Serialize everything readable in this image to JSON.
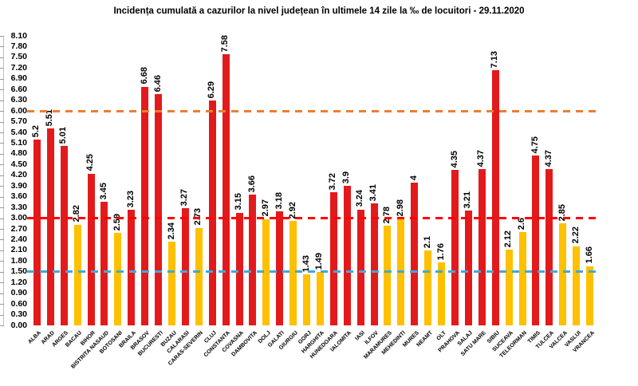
{
  "title": "Incidența cumulată a cazurilor la nivel județean în ultimele 14 zile la ‰ de locuitori - 29.11.2020",
  "chart_data": {
    "type": "bar",
    "title": "Incidența cumulată a cazurilor la nivel județean în ultimele 14 zile la ‰ de locuitori - 29.11.2020",
    "xlabel": "",
    "ylabel": "",
    "ylim": [
      0,
      8.1
    ],
    "ytick_step": 0.3,
    "ytick_labels": [
      "8.10",
      "7.80",
      "7.50",
      "7.20",
      "6.90",
      "6.60",
      "6.30",
      "6.00",
      "5.70",
      "5.40",
      "5.10",
      "4.80",
      "4.50",
      "4.20",
      "3.90",
      "3.60",
      "3.30",
      "3.00",
      "2.70",
      "2.40",
      "2.10",
      "1.80",
      "1.50",
      "1.20",
      "0.90",
      "0.60",
      "0.30",
      "0.00"
    ],
    "grid": false,
    "legend": false,
    "categories": [
      "ALBA",
      "ARAD",
      "ARGES",
      "BACAU",
      "BIHOR",
      "BISTRITA NASAUD",
      "BOTOSANI",
      "BRAILA",
      "BRASOV",
      "BUCURESTI",
      "BUZAU",
      "CALARASI",
      "CARAS-SEVERIN",
      "CLUJ",
      "CONSTANTA",
      "COVASNA",
      "DAMBOVITA",
      "DOLJ",
      "GALATI",
      "GIURGIU",
      "GORJ",
      "HARGHITA",
      "HUNEDOARA",
      "IALOMITA",
      "IASI",
      "ILFOV",
      "MARAMURES",
      "MEHEDINTI",
      "MURES",
      "NEAMT",
      "OLT",
      "PRAHOVA",
      "SALAJ",
      "SATU MARE",
      "SIBIU",
      "SUCEAVA",
      "TELEORMAN",
      "TIMIS",
      "TULCEA",
      "VALCEA",
      "VASLUI",
      "VRANCEA"
    ],
    "values": [
      5.2,
      5.51,
      5.01,
      2.82,
      4.25,
      3.45,
      2.59,
      3.23,
      6.68,
      6.46,
      2.34,
      3.27,
      2.73,
      6.29,
      7.58,
      3.15,
      3.66,
      2.97,
      3.18,
      2.92,
      1.43,
      1.49,
      3.72,
      3.9,
      3.24,
      3.41,
      2.78,
      2.98,
      4,
      2.1,
      1.76,
      4.35,
      3.21,
      4.37,
      7.13,
      2.12,
      2.6,
      4.75,
      4.37,
      2.85,
      2.22,
      1.66
    ],
    "value_labels": [
      "5.2",
      "5.51",
      "5.01",
      "2.82",
      "4.25",
      "3.45",
      "2.59",
      "3.23",
      "6.68",
      "6.46",
      "2.34",
      "3.27",
      "2.73",
      "6.29",
      "7.58",
      "3.15",
      "3.66",
      "2.97",
      "3.18",
      "2.92",
      "1.43",
      "1.49",
      "3.72",
      "3.9",
      "3.24",
      "3.41",
      "2.78",
      "2.98",
      "4",
      "2.1",
      "1.76",
      "4.35",
      "3.21",
      "4.37",
      "7.13",
      "2.12",
      "2.6",
      "4.75",
      "4.37",
      "2.85",
      "2.22",
      "1.66"
    ],
    "colors": {
      "bar_high": "#E31A1C",
      "bar_low": "#FFC000"
    },
    "color_threshold": 3.0,
    "reference_lines": [
      {
        "value": 6.0,
        "color": "#ED7D31"
      },
      {
        "value": 3.0,
        "color": "#FF0000"
      },
      {
        "value": 1.5,
        "color": "#3FA9DC"
      }
    ]
  }
}
